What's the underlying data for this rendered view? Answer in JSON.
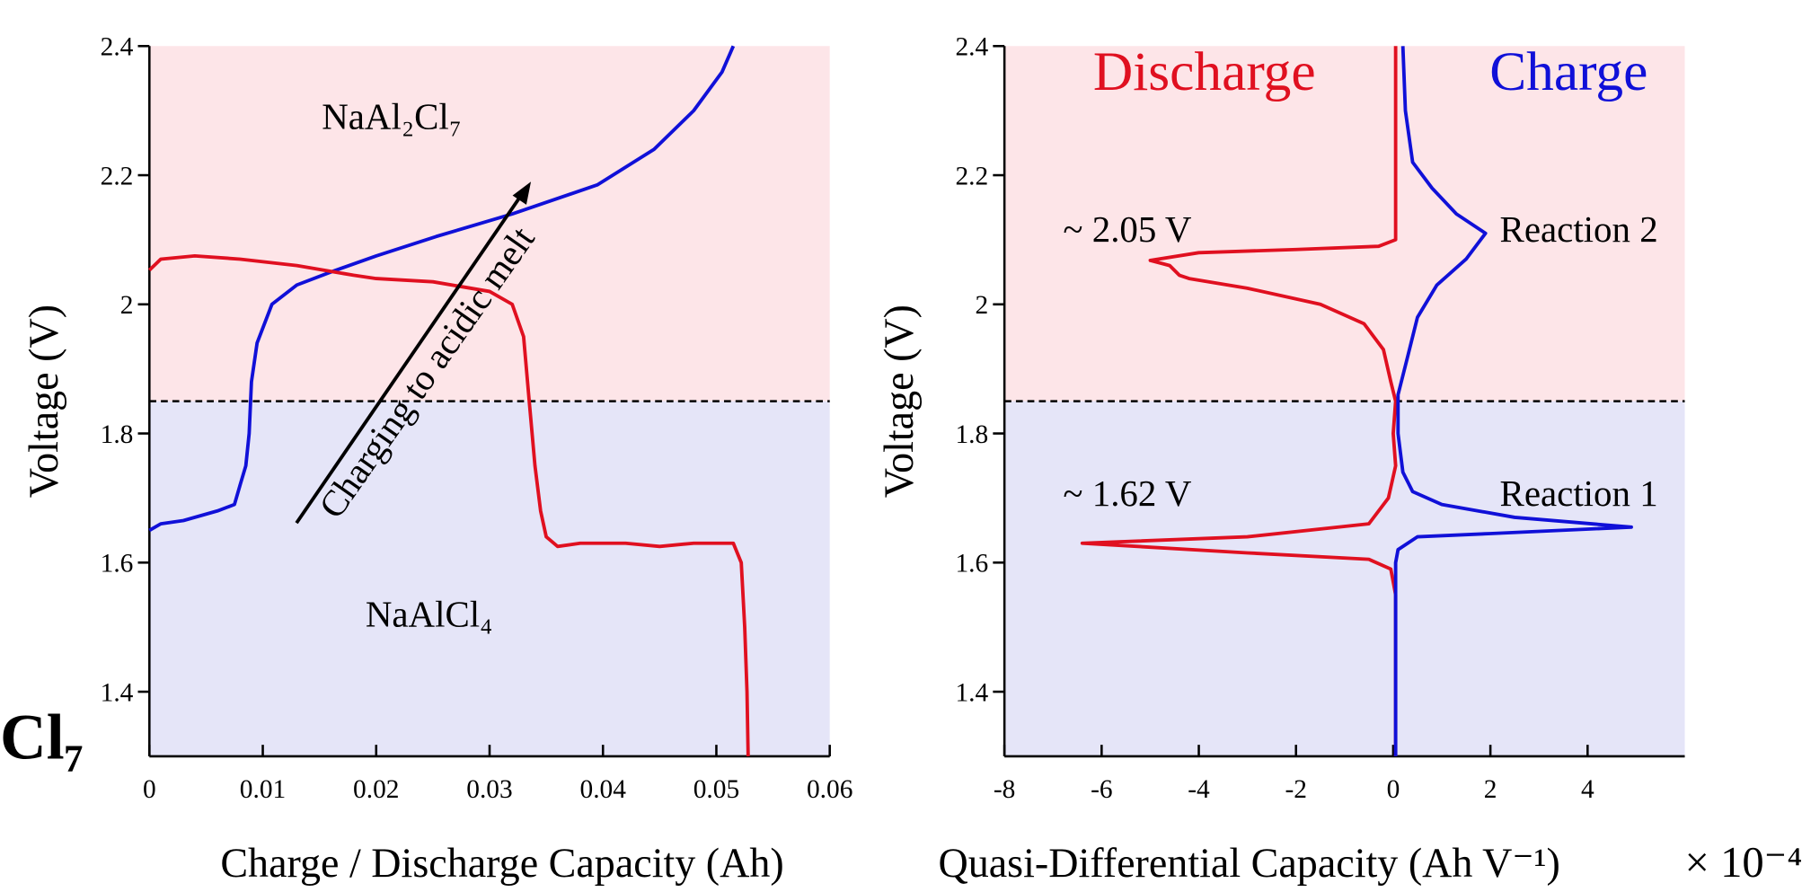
{
  "edge_text": "Cl₇",
  "chart_data": [
    {
      "type": "line",
      "xlabel": "Charge / Discharge Capacity (Ah)",
      "ylabel": "Voltage (V)",
      "xlim": [
        0,
        0.06
      ],
      "xticks": [
        0,
        0.01,
        0.02,
        0.03,
        0.04,
        0.05,
        0.06
      ],
      "ylim": [
        1.3,
        2.4
      ],
      "yticks": [
        1.4,
        1.6,
        1.8,
        2,
        2.2,
        2.4
      ],
      "threshold": 1.85,
      "upper_color": "#fde5e8",
      "lower_color": "#e5e5f8",
      "annotations": [
        "NaAl₂Cl₇",
        "NaAlCl₄",
        "Charging to acidic melt"
      ],
      "series": [
        {
          "color": "#1010d8",
          "x": [
            0,
            0.001,
            0.003,
            0.006,
            0.0075,
            0.008,
            0.0085,
            0.0088,
            0.009,
            0.0095,
            0.0108,
            0.013,
            0.016,
            0.02,
            0.0253,
            0.032,
            0.0395,
            0.0445,
            0.048,
            0.0505,
            0.0515
          ],
          "values": [
            1.65,
            1.66,
            1.665,
            1.68,
            1.69,
            1.72,
            1.75,
            1.8,
            1.88,
            1.94,
            2.0,
            2.03,
            2.05,
            2.075,
            2.105,
            2.14,
            2.185,
            2.24,
            2.3,
            2.36,
            2.4
          ]
        },
        {
          "color": "#e01020",
          "x": [
            0,
            0.001,
            0.004,
            0.008,
            0.013,
            0.018,
            0.02,
            0.025,
            0.03,
            0.032,
            0.033,
            0.0335,
            0.034,
            0.0345,
            0.035,
            0.036,
            0.038,
            0.042,
            0.045,
            0.048,
            0.0515,
            0.0522,
            0.0525,
            0.0527,
            0.0528
          ],
          "values": [
            2.053,
            2.07,
            2.075,
            2.07,
            2.06,
            2.045,
            2.04,
            2.035,
            2.02,
            2.0,
            1.95,
            1.85,
            1.75,
            1.68,
            1.64,
            1.625,
            1.63,
            1.63,
            1.625,
            1.63,
            1.63,
            1.6,
            1.5,
            1.4,
            1.3
          ]
        }
      ]
    },
    {
      "type": "line",
      "xlabel": "Quasi-Differential Capacity (Ah V⁻¹)",
      "x_multiplier": "× 10⁻⁴",
      "ylabel": "Voltage (V)",
      "xlim": [
        -8,
        6
      ],
      "xticks": [
        -8,
        -6,
        -4,
        -2,
        0,
        2,
        4
      ],
      "ylim": [
        1.3,
        2.4
      ],
      "yticks": [
        1.4,
        1.6,
        1.8,
        2,
        2.2,
        2.4
      ],
      "threshold": 1.85,
      "upper_color": "#fde5e8",
      "lower_color": "#e5e5f8",
      "annotations": [
        "~ 2.05 V",
        "Reaction 2",
        "~ 1.62 V",
        "Reaction 1"
      ],
      "series": [
        {
          "name": "Discharge",
          "color": "#e01020",
          "x": [
            0.05,
            0.05,
            -0.3,
            -2,
            -4,
            -5,
            -4.6,
            -4.4,
            -4.2,
            -3,
            -1.5,
            -0.6,
            -0.2,
            -0.05,
            0.05,
            0,
            0.05,
            -0.1,
            -0.5,
            -3,
            -6.4,
            -3,
            -0.5,
            -0.05,
            0.05,
            0.05
          ],
          "values": [
            2.4,
            2.1,
            2.09,
            2.085,
            2.08,
            2.068,
            2.06,
            2.045,
            2.04,
            2.025,
            2.0,
            1.97,
            1.93,
            1.88,
            1.85,
            1.8,
            1.75,
            1.7,
            1.66,
            1.64,
            1.63,
            1.615,
            1.605,
            1.59,
            1.55,
            1.3
          ]
        },
        {
          "name": "Charge",
          "color": "#1010d8",
          "x": [
            0.2,
            0.25,
            0.4,
            0.8,
            1.3,
            1.9,
            1.5,
            0.9,
            0.5,
            0.3,
            0.1,
            0.1,
            0.2,
            0.4,
            1,
            2.5,
            4.9,
            2,
            0.5,
            0.1,
            0.05,
            0.05
          ],
          "values": [
            2.4,
            2.3,
            2.22,
            2.18,
            2.14,
            2.11,
            2.07,
            2.03,
            1.98,
            1.92,
            1.86,
            1.8,
            1.74,
            1.71,
            1.69,
            1.67,
            1.655,
            1.645,
            1.64,
            1.62,
            1.6,
            1.3
          ]
        }
      ]
    }
  ]
}
